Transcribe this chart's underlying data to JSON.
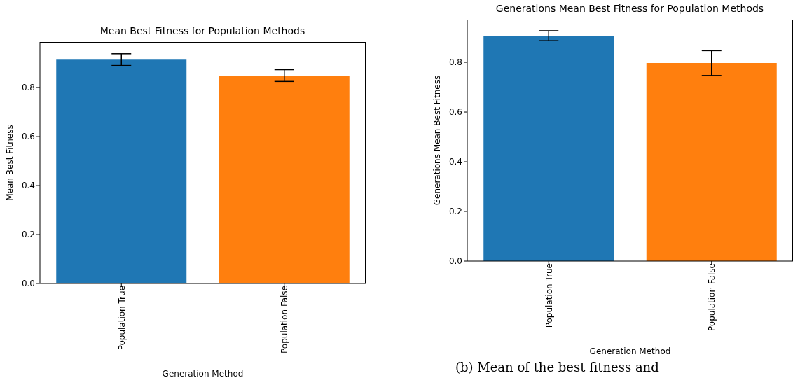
{
  "chart_data": [
    {
      "type": "bar",
      "title": "Mean Best Fitness for Population Methods",
      "xlabel": "Generation Method",
      "ylabel": "Mean Best Fitness",
      "categories": [
        "Population True",
        "Population False"
      ],
      "values": [
        0.914,
        0.849
      ],
      "colors": [
        "#1f77b4",
        "#ff7f0e"
      ],
      "errors": [
        0.024,
        0.024
      ],
      "ylim": [
        0,
        0.986
      ],
      "yticks": [
        {
          "value": 0,
          "label": "0.0"
        },
        0.2,
        0.4,
        0.6,
        0.8
      ],
      "grid": false
    },
    {
      "type": "bar",
      "title": "Generations Mean Best Fitness for Population Methods",
      "xlabel": "Generation Method",
      "ylabel": "Generations Mean Best Fitness",
      "categories": [
        "Population True",
        "Population False"
      ],
      "values": [
        0.907,
        0.797
      ],
      "colors": [
        "#1f77b4",
        "#ff7f0e"
      ],
      "errors": [
        0.02,
        0.05
      ],
      "ylim": [
        0,
        0.972
      ],
      "yticks": [
        {
          "value": 0,
          "label": "0.0"
        },
        0.2,
        0.4,
        0.6,
        0.8
      ],
      "grid": false,
      "annotations": [
        "(b) Mean of the best fitness and"
      ]
    }
  ]
}
